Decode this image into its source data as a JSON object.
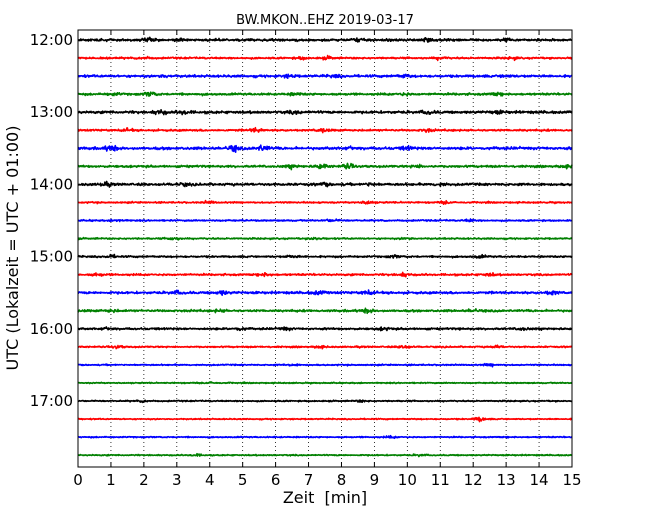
{
  "chart_data": {
    "type": "line",
    "title": "BW.MKON..EHZ 2019-03-17",
    "xlabel": "Zeit  [min]",
    "ylabel": "UTC (Lokalzeit = UTC + 01:00)",
    "xlim": [
      0,
      15
    ],
    "x_ticks": [
      0,
      1,
      2,
      3,
      4,
      5,
      6,
      7,
      8,
      9,
      10,
      11,
      12,
      13,
      14,
      15
    ],
    "x_tick_labels": [
      "0",
      "1",
      "2",
      "3",
      "4",
      "5",
      "6",
      "7",
      "8",
      "9",
      "10",
      "11",
      "12",
      "13",
      "14",
      "15"
    ],
    "y_tick_labels": [
      "12:00",
      "13:00",
      "14:00",
      "15:00",
      "16:00",
      "17:00"
    ],
    "grid": "vertical dotted",
    "color_cycle": [
      "#000000",
      "#ff0000",
      "#0000ff",
      "#008000"
    ],
    "traces": [
      {
        "start": "12:00",
        "color": "#000000",
        "amplitude": 0.55,
        "bursts": [
          [
            2.1,
            0.6
          ],
          [
            3.1,
            0.5
          ],
          [
            8.5,
            0.7
          ],
          [
            10.6,
            0.6
          ],
          [
            13.0,
            0.5
          ]
        ]
      },
      {
        "start": "12:15",
        "color": "#ff0000",
        "amplitude": 0.4,
        "bursts": [
          [
            2.0,
            0.5
          ],
          [
            6.8,
            0.6
          ],
          [
            7.6,
            0.5
          ],
          [
            11.0,
            0.6
          ],
          [
            13.2,
            0.5
          ]
        ]
      },
      {
        "start": "12:30",
        "color": "#0000ff",
        "amplitude": 0.55,
        "bursts": [
          [
            2.6,
            0.6
          ],
          [
            6.4,
            0.6
          ],
          [
            7.8,
            0.5
          ],
          [
            9.9,
            0.6
          ],
          [
            13.0,
            0.5
          ]
        ]
      },
      {
        "start": "12:45",
        "color": "#008000",
        "amplitude": 0.5,
        "bursts": [
          [
            1.1,
            0.5
          ],
          [
            2.2,
            0.9
          ],
          [
            6.6,
            0.5
          ],
          [
            9.9,
            0.6
          ],
          [
            12.7,
            0.5
          ]
        ]
      },
      {
        "start": "13:00",
        "color": "#000000",
        "amplitude": 0.6,
        "bursts": [
          [
            2.5,
            1.0
          ],
          [
            3.2,
            0.8
          ],
          [
            6.6,
            0.6
          ],
          [
            10.6,
            0.7
          ],
          [
            12.7,
            0.6
          ]
        ]
      },
      {
        "start": "13:15",
        "color": "#ff0000",
        "amplitude": 0.45,
        "bursts": [
          [
            1.5,
            0.5
          ],
          [
            5.4,
            0.8
          ],
          [
            7.4,
            0.7
          ],
          [
            10.6,
            0.6
          ]
        ]
      },
      {
        "start": "13:30",
        "color": "#0000ff",
        "amplitude": 0.6,
        "bursts": [
          [
            1.0,
            1.0
          ],
          [
            4.7,
            1.2
          ],
          [
            5.6,
            1.3
          ],
          [
            8.3,
            0.6
          ],
          [
            10.0,
            0.6
          ]
        ]
      },
      {
        "start": "13:45",
        "color": "#008000",
        "amplitude": 0.5,
        "bursts": [
          [
            6.5,
            0.6
          ],
          [
            7.4,
            1.1
          ],
          [
            8.2,
            1.0
          ],
          [
            10.3,
            0.7
          ],
          [
            14.9,
            0.8
          ]
        ]
      },
      {
        "start": "14:00",
        "color": "#000000",
        "amplitude": 0.55,
        "bursts": [
          [
            0.8,
            0.6
          ],
          [
            3.2,
            0.5
          ],
          [
            7.5,
            0.6
          ],
          [
            8.9,
            0.7
          ],
          [
            11.0,
            0.6
          ]
        ]
      },
      {
        "start": "14:15",
        "color": "#ff0000",
        "amplitude": 0.35,
        "bursts": [
          [
            4.0,
            0.5
          ],
          [
            8.8,
            0.8
          ],
          [
            11.2,
            0.6
          ]
        ]
      },
      {
        "start": "14:30",
        "color": "#0000ff",
        "amplitude": 0.35,
        "bursts": [
          [
            1.2,
            0.5
          ],
          [
            7.7,
            0.5
          ],
          [
            11.9,
            0.5
          ]
        ]
      },
      {
        "start": "14:45",
        "color": "#008000",
        "amplitude": 0.35,
        "bursts": [
          [
            2.9,
            0.6
          ],
          [
            7.2,
            0.5
          ],
          [
            10.0,
            0.5
          ]
        ]
      },
      {
        "start": "15:00",
        "color": "#000000",
        "amplitude": 0.4,
        "bursts": [
          [
            1.0,
            0.6
          ],
          [
            6.5,
            0.6
          ],
          [
            9.6,
            0.5
          ],
          [
            12.2,
            0.6
          ]
        ]
      },
      {
        "start": "15:15",
        "color": "#ff0000",
        "amplitude": 0.45,
        "bursts": [
          [
            0.6,
            0.6
          ],
          [
            5.7,
            0.6
          ],
          [
            9.9,
            0.7
          ],
          [
            12.5,
            0.6
          ]
        ]
      },
      {
        "start": "15:30",
        "color": "#0000ff",
        "amplitude": 0.55,
        "bursts": [
          [
            3.0,
            0.7
          ],
          [
            4.4,
            0.9
          ],
          [
            7.3,
            0.8
          ],
          [
            8.8,
            0.8
          ],
          [
            14.4,
            0.9
          ]
        ]
      },
      {
        "start": "15:45",
        "color": "#008000",
        "amplitude": 0.5,
        "bursts": [
          [
            1.0,
            0.6
          ],
          [
            4.3,
            0.6
          ],
          [
            8.8,
            0.7
          ],
          [
            12.0,
            0.6
          ]
        ]
      },
      {
        "start": "16:00",
        "color": "#000000",
        "amplitude": 0.45,
        "bursts": [
          [
            0.9,
            0.6
          ],
          [
            4.9,
            0.6
          ],
          [
            6.3,
            0.6
          ],
          [
            9.3,
            0.6
          ],
          [
            13.5,
            0.5
          ]
        ]
      },
      {
        "start": "16:15",
        "color": "#ff0000",
        "amplitude": 0.35,
        "bursts": [
          [
            1.2,
            0.6
          ],
          [
            7.4,
            0.6
          ],
          [
            9.9,
            0.8
          ],
          [
            12.7,
            0.5
          ]
        ]
      },
      {
        "start": "16:30",
        "color": "#0000ff",
        "amplitude": 0.3,
        "bursts": [
          [
            6.5,
            0.5
          ],
          [
            12.5,
            0.5
          ]
        ]
      },
      {
        "start": "16:45",
        "color": "#008000",
        "amplitude": 0.28,
        "bursts": [
          [
            4.0,
            0.4
          ]
        ]
      },
      {
        "start": "17:00",
        "color": "#000000",
        "amplitude": 0.3,
        "bursts": [
          [
            2.0,
            0.4
          ],
          [
            8.6,
            0.4
          ]
        ]
      },
      {
        "start": "17:15",
        "color": "#ff0000",
        "amplitude": 0.28,
        "bursts": [
          [
            12.2,
            1.0
          ]
        ]
      },
      {
        "start": "17:30",
        "color": "#0000ff",
        "amplitude": 0.3,
        "bursts": [
          [
            9.5,
            0.4
          ]
        ]
      },
      {
        "start": "17:45",
        "color": "#008000",
        "amplitude": 0.3,
        "bursts": [
          [
            3.6,
            0.4
          ],
          [
            10.4,
            0.4
          ]
        ]
      }
    ]
  }
}
